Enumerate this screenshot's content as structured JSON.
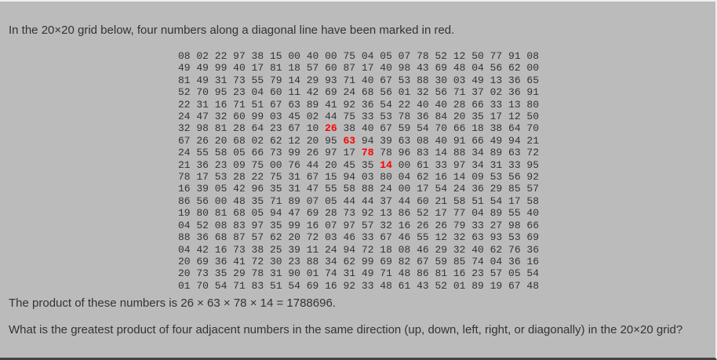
{
  "intro": "In the 20×20 grid below, four numbers along a diagonal line have been marked in red.",
  "grid": [
    [
      "08",
      "02",
      "22",
      "97",
      "38",
      "15",
      "00",
      "40",
      "00",
      "75",
      "04",
      "05",
      "07",
      "78",
      "52",
      "12",
      "50",
      "77",
      "91",
      "08"
    ],
    [
      "49",
      "49",
      "99",
      "40",
      "17",
      "81",
      "18",
      "57",
      "60",
      "87",
      "17",
      "40",
      "98",
      "43",
      "69",
      "48",
      "04",
      "56",
      "62",
      "00"
    ],
    [
      "81",
      "49",
      "31",
      "73",
      "55",
      "79",
      "14",
      "29",
      "93",
      "71",
      "40",
      "67",
      "53",
      "88",
      "30",
      "03",
      "49",
      "13",
      "36",
      "65"
    ],
    [
      "52",
      "70",
      "95",
      "23",
      "04",
      "60",
      "11",
      "42",
      "69",
      "24",
      "68",
      "56",
      "01",
      "32",
      "56",
      "71",
      "37",
      "02",
      "36",
      "91"
    ],
    [
      "22",
      "31",
      "16",
      "71",
      "51",
      "67",
      "63",
      "89",
      "41",
      "92",
      "36",
      "54",
      "22",
      "40",
      "40",
      "28",
      "66",
      "33",
      "13",
      "80"
    ],
    [
      "24",
      "47",
      "32",
      "60",
      "99",
      "03",
      "45",
      "02",
      "44",
      "75",
      "33",
      "53",
      "78",
      "36",
      "84",
      "20",
      "35",
      "17",
      "12",
      "50"
    ],
    [
      "32",
      "98",
      "81",
      "28",
      "64",
      "23",
      "67",
      "10",
      "26",
      "38",
      "40",
      "67",
      "59",
      "54",
      "70",
      "66",
      "18",
      "38",
      "64",
      "70"
    ],
    [
      "67",
      "26",
      "20",
      "68",
      "02",
      "62",
      "12",
      "20",
      "95",
      "63",
      "94",
      "39",
      "63",
      "08",
      "40",
      "91",
      "66",
      "49",
      "94",
      "21"
    ],
    [
      "24",
      "55",
      "58",
      "05",
      "66",
      "73",
      "99",
      "26",
      "97",
      "17",
      "78",
      "78",
      "96",
      "83",
      "14",
      "88",
      "34",
      "89",
      "63",
      "72"
    ],
    [
      "21",
      "36",
      "23",
      "09",
      "75",
      "00",
      "76",
      "44",
      "20",
      "45",
      "35",
      "14",
      "00",
      "61",
      "33",
      "97",
      "34",
      "31",
      "33",
      "95"
    ],
    [
      "78",
      "17",
      "53",
      "28",
      "22",
      "75",
      "31",
      "67",
      "15",
      "94",
      "03",
      "80",
      "04",
      "62",
      "16",
      "14",
      "09",
      "53",
      "56",
      "92"
    ],
    [
      "16",
      "39",
      "05",
      "42",
      "96",
      "35",
      "31",
      "47",
      "55",
      "58",
      "88",
      "24",
      "00",
      "17",
      "54",
      "24",
      "36",
      "29",
      "85",
      "57"
    ],
    [
      "86",
      "56",
      "00",
      "48",
      "35",
      "71",
      "89",
      "07",
      "05",
      "44",
      "44",
      "37",
      "44",
      "60",
      "21",
      "58",
      "51",
      "54",
      "17",
      "58"
    ],
    [
      "19",
      "80",
      "81",
      "68",
      "05",
      "94",
      "47",
      "69",
      "28",
      "73",
      "92",
      "13",
      "86",
      "52",
      "17",
      "77",
      "04",
      "89",
      "55",
      "40"
    ],
    [
      "04",
      "52",
      "08",
      "83",
      "97",
      "35",
      "99",
      "16",
      "07",
      "97",
      "57",
      "32",
      "16",
      "26",
      "26",
      "79",
      "33",
      "27",
      "98",
      "66"
    ],
    [
      "88",
      "36",
      "68",
      "87",
      "57",
      "62",
      "20",
      "72",
      "03",
      "46",
      "33",
      "67",
      "46",
      "55",
      "12",
      "32",
      "63",
      "93",
      "53",
      "69"
    ],
    [
      "04",
      "42",
      "16",
      "73",
      "38",
      "25",
      "39",
      "11",
      "24",
      "94",
      "72",
      "18",
      "08",
      "46",
      "29",
      "32",
      "40",
      "62",
      "76",
      "36"
    ],
    [
      "20",
      "69",
      "36",
      "41",
      "72",
      "30",
      "23",
      "88",
      "34",
      "62",
      "99",
      "69",
      "82",
      "67",
      "59",
      "85",
      "74",
      "04",
      "36",
      "16"
    ],
    [
      "20",
      "73",
      "35",
      "29",
      "78",
      "31",
      "90",
      "01",
      "74",
      "31",
      "49",
      "71",
      "48",
      "86",
      "81",
      "16",
      "23",
      "57",
      "05",
      "54"
    ],
    [
      "01",
      "70",
      "54",
      "71",
      "83",
      "51",
      "54",
      "69",
      "16",
      "92",
      "33",
      "48",
      "61",
      "43",
      "52",
      "01",
      "89",
      "19",
      "67",
      "48"
    ]
  ],
  "highlighted": [
    [
      6,
      8
    ],
    [
      7,
      9
    ],
    [
      8,
      10
    ],
    [
      9,
      11
    ]
  ],
  "highlight_color": "#ff0000",
  "product_text": "The product of these numbers is 26 × 63 × 78 × 14 = 1788696.",
  "question": "What is the greatest product of four adjacent numbers in the same direction (up, down, left, right, or diagonally) in the 20×20 grid?"
}
